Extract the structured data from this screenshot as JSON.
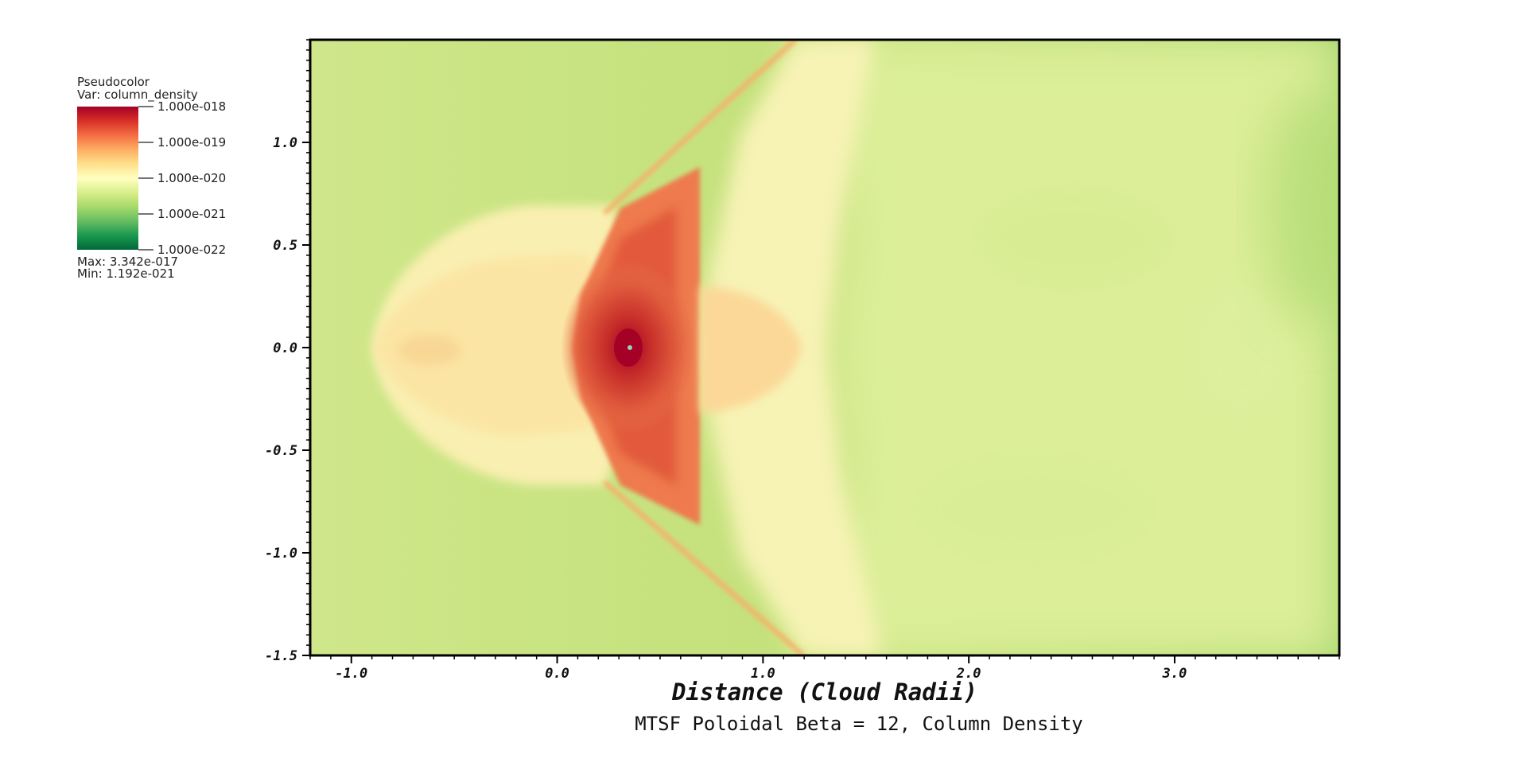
{
  "legend": {
    "plot_type": "Pseudocolor",
    "variable_label": "Var: column_density",
    "tick_labels": [
      "1.000e-018",
      "1.000e-019",
      "1.000e-020",
      "1.000e-021",
      "1.000e-022"
    ],
    "max_label": "Max:  3.342e-017",
    "min_label": "Min:  1.192e-021",
    "colormap": [
      "#a50026",
      "#d73027",
      "#f46d43",
      "#fdae61",
      "#fee08b",
      "#ffffbf",
      "#d9ef8b",
      "#a6d96a",
      "#66bd63",
      "#1a9850",
      "#006837"
    ]
  },
  "chart_data": {
    "type": "heatmap",
    "title": "MTSF Poloidal Beta = 12, Column Density",
    "xlabel": "Distance (Cloud Radii)",
    "ylabel": "",
    "xlim": [
      -1.2,
      3.8
    ],
    "ylim": [
      -1.5,
      1.5
    ],
    "x_ticks": [
      -1.0,
      0.0,
      1.0,
      2.0,
      3.0
    ],
    "x_tick_labels": [
      "-1.0",
      "0.0",
      "1.0",
      "2.0",
      "3.0"
    ],
    "y_ticks": [
      1.0,
      0.5,
      0.0,
      -0.5,
      -1.0,
      -1.5
    ],
    "y_tick_labels": [
      "1.0",
      "0.5",
      "0.0",
      "-0.5",
      "-1.0",
      "-1.5"
    ],
    "colorbar": {
      "variable": "column_density",
      "scale": "log",
      "range": [
        1e-22,
        1e-18
      ],
      "max": 3.342e-17,
      "min": 1.192e-21
    },
    "background_color": "#c2e07a",
    "features": {
      "core_center": [
        0.35,
        0.0
      ],
      "dense_band_x": [
        0.05,
        0.7
      ],
      "outer_shell_apex_x": -0.92,
      "bow_shock_vertex_x": 0.3
    }
  }
}
